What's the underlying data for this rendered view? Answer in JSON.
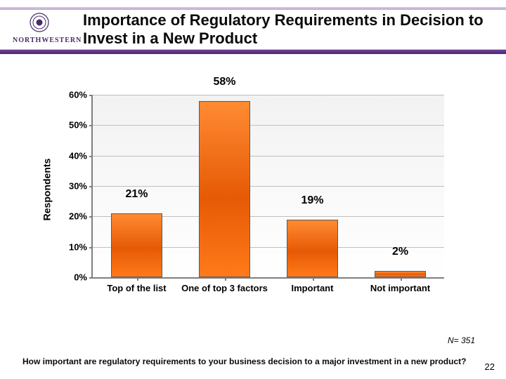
{
  "header": {
    "title": "Importance of Regulatory Requirements in Decision to Invest in a New Product",
    "logo_word": "NORTHWESTERN",
    "logo_seal_color": "#4a2a6a",
    "stripe_color": "#b9a6cf",
    "divider_color": "#5a327f"
  },
  "chart": {
    "type": "bar",
    "y_axis_title": "Respondents",
    "ylim": [
      0,
      60
    ],
    "ytick_step": 10,
    "y_ticks": [
      "0%",
      "10%",
      "20%",
      "30%",
      "40%",
      "50%",
      "60%"
    ],
    "categories": [
      "Top of the list",
      "One of top 3 factors",
      "Important",
      "Not important"
    ],
    "values": [
      21,
      58,
      19,
      2
    ],
    "value_labels": [
      "21%",
      "58%",
      "19%",
      "2%"
    ],
    "bar_color": "#eb6409",
    "bar_border": "#5a5a5a",
    "grid_color": "#bfbfbf",
    "axis_color": "#7f7f7f",
    "background_color": "#ffffff",
    "label_fontsize": 13,
    "value_fontsize": 16,
    "bar_width": 0.58
  },
  "footer": {
    "n_note": "N= 351",
    "question": "How important are regulatory requirements to your business decision to a major investment in a new product?",
    "page_number": "22"
  }
}
